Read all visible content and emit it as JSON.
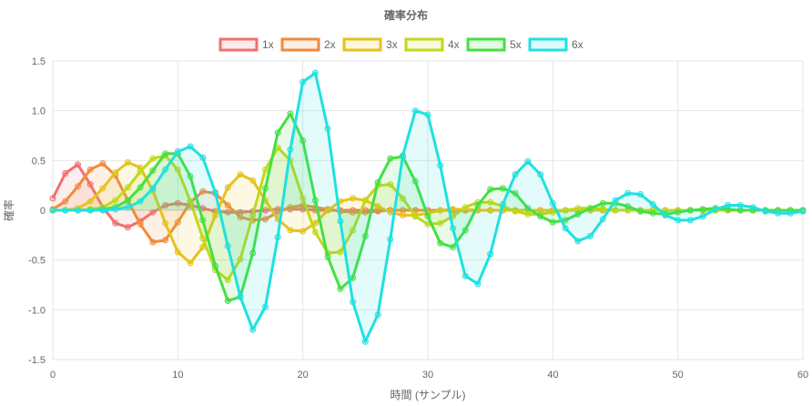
{
  "chart_data": {
    "type": "line",
    "title": "確率分布",
    "xlabel": "時間 (サンプル)",
    "ylabel": "確率",
    "xlim": [
      0,
      60
    ],
    "ylim": [
      -1.5,
      1.5
    ],
    "xticks": [
      "0",
      "10",
      "20",
      "30",
      "40",
      "50",
      "60"
    ],
    "yticks": [
      "1.5",
      "1.0",
      "0.5",
      "0",
      "-0.5",
      "-1.0",
      "-1.5"
    ],
    "legend_position": "top",
    "grid": true,
    "series": [
      {
        "name": "1x",
        "color": "#f07070",
        "values": [
          0.12,
          0.37,
          0.46,
          0.26,
          0.03,
          -0.13,
          -0.17,
          -0.11,
          -0.02,
          0.05,
          0.07,
          0.05,
          0.02,
          -0.01,
          -0.02,
          -0.02,
          -0.01,
          0.0,
          0.01,
          0.01,
          0.01,
          0.0,
          0.0,
          0.0,
          0.0,
          0.0,
          0.0,
          0.0,
          0.0,
          0.0,
          0.0,
          0.0,
          0.0,
          0.0,
          0.0,
          0.0,
          0.0,
          0.0,
          0.0,
          0.0,
          0.0,
          0.0,
          0.0,
          0.0,
          0.0,
          0.0,
          0.0,
          0.0,
          0.0,
          0.0,
          0.0,
          0.0,
          0.0,
          0.0,
          0.0,
          0.0,
          0.0,
          0.0,
          0.0,
          0.0,
          0.0
        ]
      },
      {
        "name": "2x",
        "color": "#f08a3c",
        "values": [
          0.01,
          0.09,
          0.24,
          0.41,
          0.47,
          0.35,
          0.1,
          -0.14,
          -0.32,
          -0.3,
          -0.12,
          0.08,
          0.19,
          0.17,
          0.05,
          -0.07,
          -0.1,
          -0.09,
          -0.02,
          0.03,
          0.05,
          0.03,
          0.01,
          -0.01,
          -0.02,
          -0.02,
          -0.01,
          0.0,
          0.0,
          0.0,
          0.0,
          0.0,
          0.0,
          0.0,
          0.0,
          0.0,
          0.0,
          0.0,
          0.0,
          0.0,
          0.0,
          0.0,
          0.0,
          0.0,
          0.0,
          0.0,
          0.0,
          0.0,
          0.0,
          0.0,
          0.0,
          0.0,
          0.0,
          0.0,
          0.0,
          0.0,
          0.0,
          0.0,
          0.0,
          0.0,
          0.0
        ]
      },
      {
        "name": "3x",
        "color": "#e6c21c",
        "values": [
          0.0,
          0.0,
          0.02,
          0.09,
          0.22,
          0.38,
          0.48,
          0.43,
          0.2,
          -0.13,
          -0.42,
          -0.53,
          -0.37,
          -0.05,
          0.23,
          0.36,
          0.3,
          0.1,
          -0.09,
          -0.2,
          -0.21,
          -0.13,
          0.0,
          0.09,
          0.12,
          0.1,
          0.04,
          -0.02,
          -0.05,
          -0.05,
          -0.03,
          0.0,
          0.01,
          0.01,
          0.0,
          0.0,
          0.0,
          0.0,
          0.0,
          0.0,
          0.0,
          0.0,
          0.0,
          0.0,
          0.0,
          0.0,
          0.0,
          0.0,
          0.0,
          0.0,
          0.0,
          0.0,
          0.0,
          0.0,
          0.0,
          0.0,
          0.0,
          0.0,
          0.0,
          0.0,
          0.0
        ]
      },
      {
        "name": "4x",
        "color": "#c2d81a",
        "values": [
          0.0,
          0.0,
          0.0,
          0.01,
          0.03,
          0.1,
          0.23,
          0.39,
          0.52,
          0.55,
          0.41,
          0.09,
          -0.28,
          -0.6,
          -0.7,
          -0.49,
          -0.05,
          0.41,
          0.63,
          0.5,
          0.12,
          -0.22,
          -0.43,
          -0.42,
          -0.2,
          0.1,
          0.25,
          0.26,
          0.12,
          -0.06,
          -0.14,
          -0.13,
          -0.06,
          0.03,
          0.08,
          0.08,
          0.04,
          -0.01,
          -0.04,
          -0.04,
          -0.02,
          0.0,
          0.02,
          0.02,
          0.01,
          0.0,
          0.0,
          0.0,
          0.0,
          0.0,
          0.0,
          0.0,
          0.0,
          0.0,
          0.0,
          0.0,
          0.0,
          0.0,
          0.0,
          0.0,
          0.0
        ]
      },
      {
        "name": "5x",
        "color": "#43e043",
        "values": [
          0.0,
          0.0,
          0.0,
          0.0,
          0.01,
          0.03,
          0.1,
          0.23,
          0.4,
          0.57,
          0.57,
          0.34,
          -0.1,
          -0.56,
          -0.91,
          -0.87,
          -0.43,
          0.22,
          0.78,
          0.97,
          0.7,
          0.1,
          -0.47,
          -0.79,
          -0.68,
          -0.26,
          0.28,
          0.52,
          0.54,
          0.29,
          -0.06,
          -0.33,
          -0.37,
          -0.2,
          0.05,
          0.21,
          0.22,
          0.17,
          0.02,
          -0.06,
          -0.12,
          -0.1,
          -0.04,
          0.02,
          0.07,
          0.07,
          0.04,
          -0.01,
          -0.03,
          -0.04,
          -0.02,
          0.0,
          0.01,
          0.02,
          0.01,
          0.0,
          0.0,
          0.0,
          0.0,
          0.0,
          0.0
        ]
      },
      {
        "name": "6x",
        "color": "#20e0e0",
        "values": [
          0.0,
          0.0,
          0.0,
          0.0,
          0.0,
          0.01,
          0.03,
          0.09,
          0.22,
          0.41,
          0.59,
          0.64,
          0.53,
          0.18,
          -0.36,
          -0.87,
          -1.2,
          -0.97,
          -0.27,
          0.61,
          1.29,
          1.38,
          0.82,
          -0.11,
          -0.92,
          -1.32,
          -1.05,
          -0.29,
          0.55,
          1.0,
          0.96,
          0.45,
          -0.18,
          -0.66,
          -0.74,
          -0.44,
          0.06,
          0.36,
          0.49,
          0.36,
          0.07,
          -0.18,
          -0.31,
          -0.26,
          -0.09,
          0.1,
          0.17,
          0.16,
          0.06,
          -0.05,
          -0.1,
          -0.1,
          -0.06,
          0.01,
          0.05,
          0.05,
          0.03,
          -0.01,
          -0.03,
          -0.03,
          -0.01
        ]
      }
    ]
  }
}
